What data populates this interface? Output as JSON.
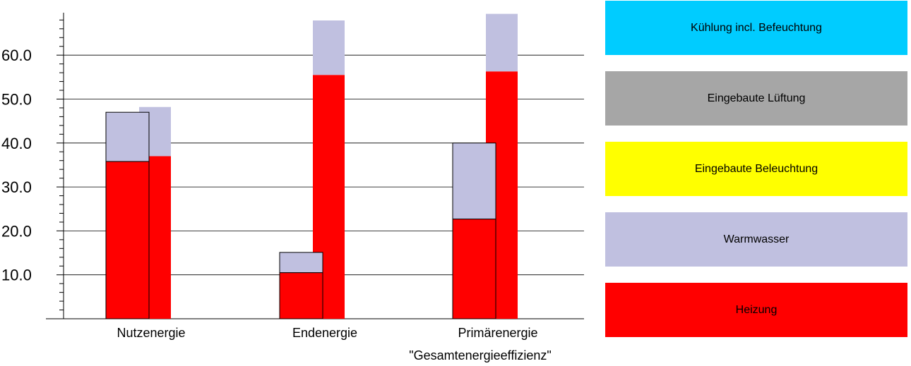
{
  "chart_data": {
    "type": "bar",
    "categories": [
      "Nutzenergie",
      "Endenergie",
      "Primärenergie"
    ],
    "xlabel": "\"Gesamtenergieeffizienz\"",
    "ylabel": "",
    "ylim": [
      0,
      70
    ],
    "yticks": [
      "10.0",
      "20.0",
      "30.0",
      "40.0",
      "50.0",
      "60.0"
    ],
    "grid": true,
    "groups": [
      {
        "bar": "front",
        "outline": true,
        "series": [
          {
            "name": "Heizung",
            "values": [
              35.8,
              10.5,
              22.7
            ]
          },
          {
            "name": "Warmwasser",
            "values": [
              11.2,
              4.6,
              17.3
            ]
          }
        ]
      },
      {
        "bar": "back",
        "outline": false,
        "series": [
          {
            "name": "Heizung",
            "values": [
              37.0,
              55.5,
              56.3
            ]
          },
          {
            "name": "Warmwasser",
            "values": [
              11.2,
              12.4,
              13.1
            ]
          }
        ]
      }
    ],
    "legend": [
      {
        "name": "Kühlung incl. Befeuchtung",
        "color": "#00ccff"
      },
      {
        "name": "Eingebaute Lüftung",
        "color": "#a6a6a6"
      },
      {
        "name": "Eingebaute Beleuchtung",
        "color": "#ffff00"
      },
      {
        "name": "Warmwasser",
        "color": "#c0c0e0"
      },
      {
        "name": "Heizung",
        "color": "#ff0000"
      }
    ],
    "legend_position": "right",
    "colors": {
      "Heizung": "#ff0000",
      "Warmwasser": "#c0c0e0"
    }
  }
}
